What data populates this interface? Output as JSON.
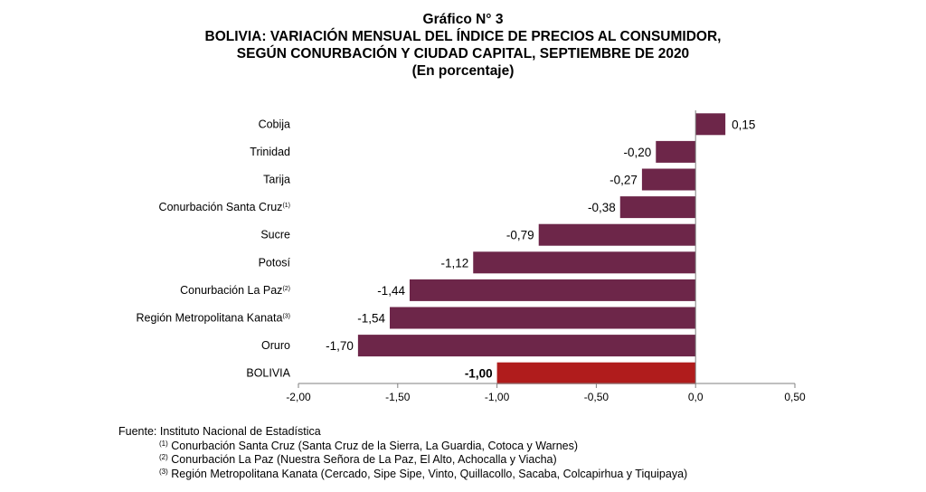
{
  "title": "Gráfico N° 3",
  "subtitle_1": "BOLIVIA: VARIACIÓN MENSUAL DEL ÍNDICE DE PRECIOS AL CONSUMIDOR,",
  "subtitle_2": "SEGÚN CONURBACIÓN Y CIUDAD CAPITAL, SEPTIEMBRE DE 2020",
  "subtitle_3": "(En porcentaje)",
  "colors": {
    "bar": "#6d2649",
    "highlight": "#b01c1c"
  },
  "chart_data": {
    "type": "bar",
    "orientation": "horizontal",
    "categories": [
      "Cobija",
      "Trinidad",
      "Tarija",
      "Conurbación Santa Cruz",
      "Sucre",
      "Potosí",
      "Conurbación La Paz",
      "Región Metropolitana Kanata",
      "Oruro",
      "BOLIVIA"
    ],
    "category_superscripts": [
      "",
      "",
      "",
      "(1)",
      "",
      "",
      "(2)",
      "(3)",
      "",
      ""
    ],
    "values": [
      0.15,
      -0.2,
      -0.27,
      -0.38,
      -0.79,
      -1.12,
      -1.44,
      -1.54,
      -1.7,
      -1.0
    ],
    "value_labels": [
      "0,15",
      "-0,20",
      "-0,27",
      "-0,38",
      "-0,79",
      "-1,12",
      "-1,44",
      "-1,54",
      "-1,70",
      "-1,00"
    ],
    "highlight_category": "BOLIVIA",
    "xlim": [
      -2.0,
      0.5
    ],
    "xticks": [
      -2.0,
      -1.5,
      -1.0,
      -0.5,
      0.0,
      0.5
    ],
    "xtick_labels": [
      "-2,00",
      "-1,50",
      "-1,00",
      "-0,50",
      "0,0",
      "0,50"
    ],
    "grid": false,
    "legend": "none"
  },
  "footer": {
    "source": "Fuente: Instituto Nacional de Estadística",
    "notes": [
      {
        "mark": "(1)",
        "text": "Conurbación Santa Cruz (Santa Cruz de la Sierra, La Guardia, Cotoca y Warnes)"
      },
      {
        "mark": "(2)",
        "text": "Conurbación La Paz (Nuestra Señora de La Paz, El Alto, Achocalla y Viacha)"
      },
      {
        "mark": "(3)",
        "text": "Región Metropolitana Kanata (Cercado, Sipe Sipe, Vinto, Quillacollo, Sacaba, Colcapirhua y Tiquipaya)"
      }
    ]
  }
}
